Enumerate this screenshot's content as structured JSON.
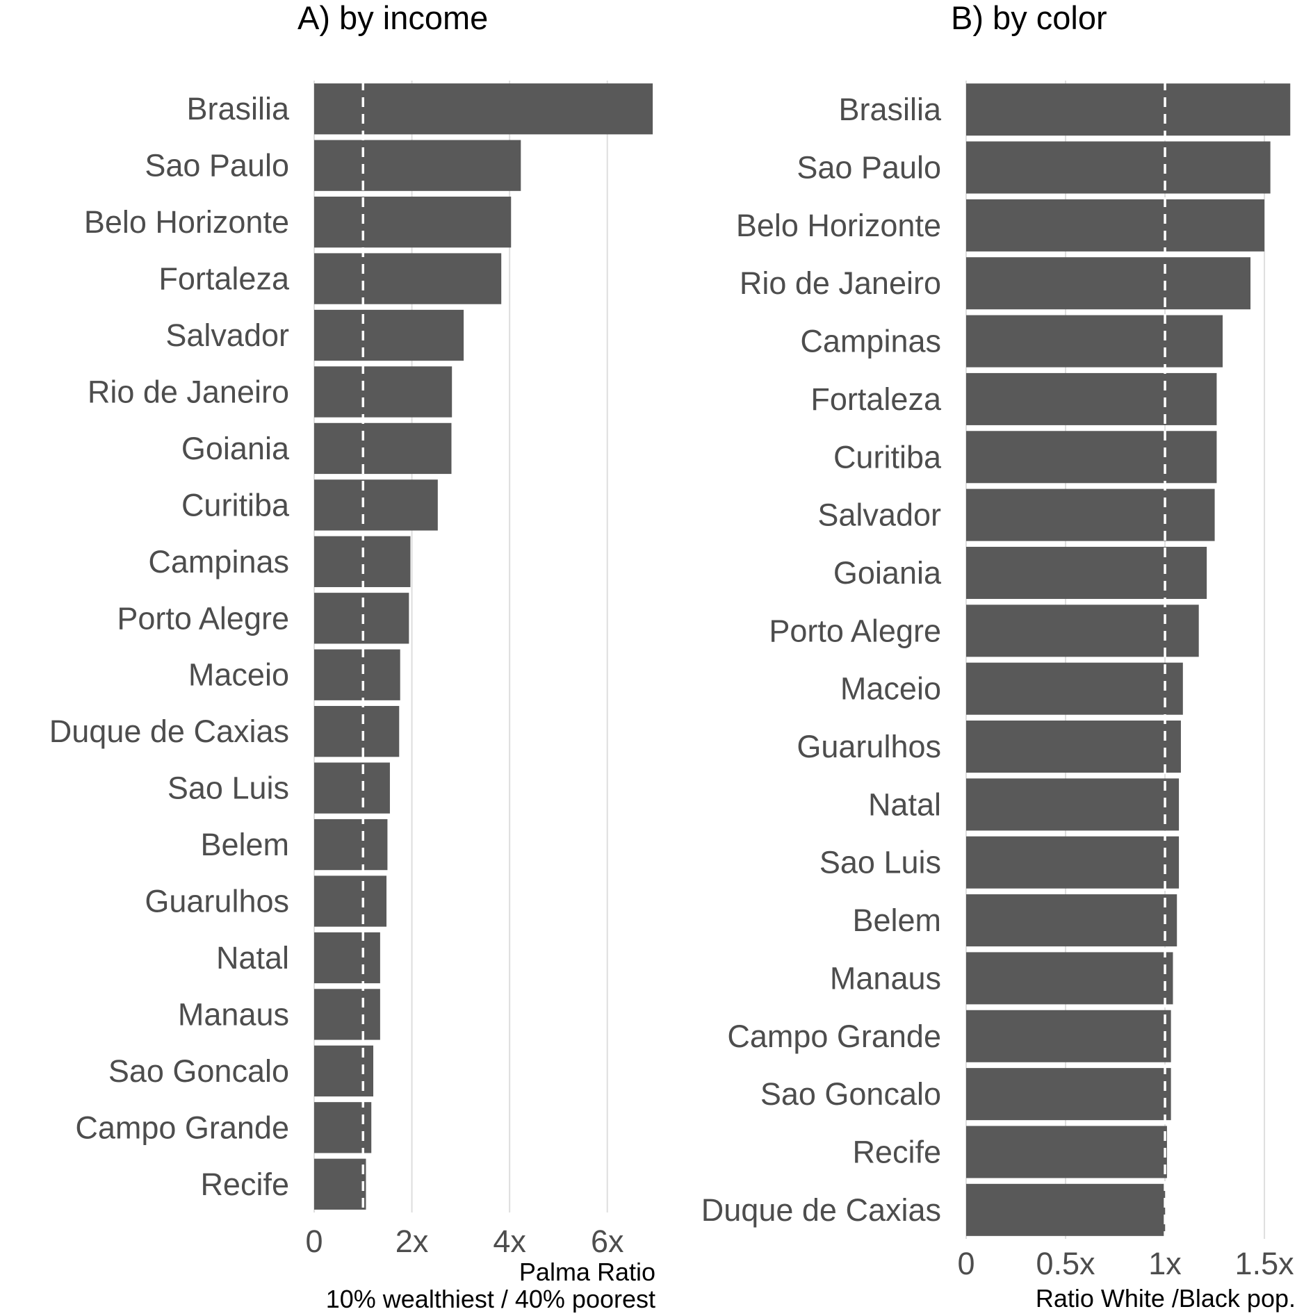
{
  "chart_data": [
    {
      "type": "bar",
      "orientation": "horizontal",
      "title": "A) by income",
      "xlabel": "Palma Ratio\n10% wealthiest / 40% poorest",
      "ylabel": "",
      "xlim": [
        0,
        7
      ],
      "xticks": [
        0,
        2,
        4,
        6
      ],
      "xtick_labels": [
        "0",
        "2x",
        "4x",
        "6x"
      ],
      "reference_line": 1,
      "grid": true,
      "bar_color": "#595959",
      "categories": [
        "Brasilia",
        "Sao Paulo",
        "Belo Horizonte",
        "Fortaleza",
        "Salvador",
        "Rio de Janeiro",
        "Goiania",
        "Curitiba",
        "Campinas",
        "Porto Alegre",
        "Maceio",
        "Duque de Caxias",
        "Sao Luis",
        "Belem",
        "Guarulhos",
        "Natal",
        "Manaus",
        "Sao Goncalo",
        "Campo Grande",
        "Recife"
      ],
      "values": [
        6.93,
        4.23,
        4.03,
        3.83,
        3.06,
        2.82,
        2.81,
        2.53,
        1.97,
        1.94,
        1.76,
        1.74,
        1.55,
        1.5,
        1.48,
        1.35,
        1.35,
        1.21,
        1.17,
        1.06
      ]
    },
    {
      "type": "bar",
      "orientation": "horizontal",
      "title": "B) by color",
      "xlabel": "Ratio White /Black pop.",
      "ylabel": "",
      "xlim": [
        0,
        1.65
      ],
      "xticks": [
        0,
        0.5,
        1,
        1.5
      ],
      "xtick_labels": [
        "0",
        "0.5x",
        "1x",
        "1.5x"
      ],
      "reference_line": 1,
      "grid": true,
      "bar_color": "#595959",
      "categories": [
        "Brasilia",
        "Sao Paulo",
        "Belo Horizonte",
        "Rio de Janeiro",
        "Campinas",
        "Fortaleza",
        "Curitiba",
        "Salvador",
        "Goiania",
        "Porto Alegre",
        "Maceio",
        "Guarulhos",
        "Natal",
        "Sao Luis",
        "Belem",
        "Manaus",
        "Campo Grande",
        "Sao Goncalo",
        "Recife",
        "Duque de Caxias"
      ],
      "values": [
        1.63,
        1.53,
        1.5,
        1.43,
        1.29,
        1.26,
        1.26,
        1.25,
        1.21,
        1.17,
        1.09,
        1.08,
        1.07,
        1.07,
        1.06,
        1.04,
        1.03,
        1.03,
        1.01,
        1.0
      ]
    }
  ]
}
